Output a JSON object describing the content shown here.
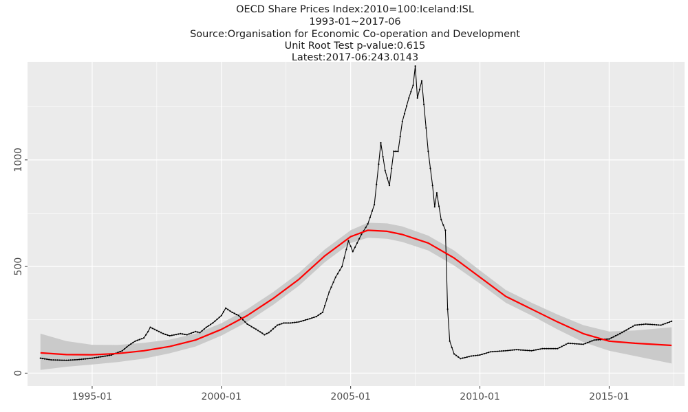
{
  "chart_data": {
    "type": "line",
    "title_lines": [
      "OECD Share Prices Index:2010=100:Iceland:ISL",
      "1993-01~2017-06",
      "Source:Organisation for Economic Co-operation and Development",
      "Unit Root Test p-value:0.615",
      "Latest:2017-06:243.0143"
    ],
    "xlabel": "",
    "ylabel": "",
    "x_range": [
      "1992-07",
      "2017-12"
    ],
    "ylim": [
      -60,
      1460
    ],
    "x_ticks": [
      {
        "date": "1995-01",
        "label": "1995-01"
      },
      {
        "date": "2000-01",
        "label": "2000-01"
      },
      {
        "date": "2005-01",
        "label": "2005-01"
      },
      {
        "date": "2010-01",
        "label": "2010-01"
      },
      {
        "date": "2015-01",
        "label": "2015-01"
      }
    ],
    "y_ticks": [
      {
        "value": 0,
        "label": "0"
      },
      {
        "value": 500,
        "label": "500"
      },
      {
        "value": 1000,
        "label": "1000"
      }
    ],
    "grid": true,
    "background": "#ebebeb",
    "colors": {
      "series": "#000000",
      "trend": "#ff0000",
      "band": "#c8c8c8",
      "grid": "#ffffff"
    },
    "series_anchors": [
      [
        "1993-01",
        70
      ],
      [
        "1993-06",
        62
      ],
      [
        "1994-01",
        60
      ],
      [
        "1994-06",
        63
      ],
      [
        "1995-01",
        70
      ],
      [
        "1995-06",
        78
      ],
      [
        "1995-10",
        85
      ],
      [
        "1996-03",
        105
      ],
      [
        "1996-06",
        130
      ],
      [
        "1996-09",
        150
      ],
      [
        "1997-01",
        165
      ],
      [
        "1997-03",
        195
      ],
      [
        "1997-04",
        215
      ],
      [
        "1997-07",
        200
      ],
      [
        "1997-10",
        185
      ],
      [
        "1998-01",
        175
      ],
      [
        "1998-06",
        185
      ],
      [
        "1998-09",
        180
      ],
      [
        "1999-01",
        195
      ],
      [
        "1999-03",
        190
      ],
      [
        "1999-06",
        215
      ],
      [
        "1999-09",
        235
      ],
      [
        "2000-01",
        270
      ],
      [
        "2000-03",
        305
      ],
      [
        "2000-06",
        285
      ],
      [
        "2000-09",
        270
      ],
      [
        "2001-01",
        230
      ],
      [
        "2001-06",
        200
      ],
      [
        "2001-09",
        180
      ],
      [
        "2001-11",
        190
      ],
      [
        "2002-03",
        225
      ],
      [
        "2002-06",
        235
      ],
      [
        "2002-09",
        235
      ],
      [
        "2003-01",
        240
      ],
      [
        "2003-06",
        255
      ],
      [
        "2003-09",
        265
      ],
      [
        "2003-12",
        285
      ],
      [
        "2004-03",
        380
      ],
      [
        "2004-06",
        450
      ],
      [
        "2004-09",
        500
      ],
      [
        "2004-12",
        620
      ],
      [
        "2005-02",
        570
      ],
      [
        "2005-06",
        650
      ],
      [
        "2005-09",
        700
      ],
      [
        "2005-12",
        790
      ],
      [
        "2006-02",
        980
      ],
      [
        "2006-03",
        1080
      ],
      [
        "2006-05",
        950
      ],
      [
        "2006-07",
        880
      ],
      [
        "2006-09",
        1040
      ],
      [
        "2006-11",
        1040
      ],
      [
        "2007-01",
        1180
      ],
      [
        "2007-04",
        1290
      ],
      [
        "2007-06",
        1350
      ],
      [
        "2007-07",
        1440
      ],
      [
        "2007-08",
        1290
      ],
      [
        "2007-10",
        1370
      ],
      [
        "2008-01",
        1040
      ],
      [
        "2008-03",
        880
      ],
      [
        "2008-04",
        780
      ],
      [
        "2008-05",
        845
      ],
      [
        "2008-07",
        720
      ],
      [
        "2008-09",
        670
      ],
      [
        "2008-10",
        300
      ],
      [
        "2008-11",
        150
      ],
      [
        "2009-01",
        90
      ],
      [
        "2009-04",
        68
      ],
      [
        "2009-09",
        80
      ],
      [
        "2010-01",
        85
      ],
      [
        "2010-06",
        100
      ],
      [
        "2011-01",
        105
      ],
      [
        "2011-06",
        110
      ],
      [
        "2012-01",
        105
      ],
      [
        "2012-06",
        115
      ],
      [
        "2013-01",
        115
      ],
      [
        "2013-06",
        140
      ],
      [
        "2014-01",
        135
      ],
      [
        "2014-06",
        155
      ],
      [
        "2015-01",
        160
      ],
      [
        "2015-06",
        185
      ],
      [
        "2016-01",
        225
      ],
      [
        "2016-06",
        230
      ],
      [
        "2017-01",
        225
      ],
      [
        "2017-06",
        243
      ]
    ],
    "trend_line": [
      [
        "1993-01",
        95
      ],
      [
        "1994-01",
        87
      ],
      [
        "1995-01",
        86
      ],
      [
        "1996-01",
        92
      ],
      [
        "1997-01",
        105
      ],
      [
        "1998-01",
        125
      ],
      [
        "1999-01",
        155
      ],
      [
        "2000-01",
        205
      ],
      [
        "2001-01",
        270
      ],
      [
        "2002-01",
        350
      ],
      [
        "2003-01",
        440
      ],
      [
        "2004-01",
        550
      ],
      [
        "2005-01",
        640
      ],
      [
        "2005-09",
        670
      ],
      [
        "2006-06",
        665
      ],
      [
        "2007-01",
        650
      ],
      [
        "2008-01",
        610
      ],
      [
        "2009-01",
        540
      ],
      [
        "2010-01",
        450
      ],
      [
        "2011-01",
        360
      ],
      [
        "2012-01",
        300
      ],
      [
        "2013-01",
        240
      ],
      [
        "2014-01",
        185
      ],
      [
        "2015-01",
        150
      ],
      [
        "2016-01",
        140
      ],
      [
        "2017-06",
        130
      ]
    ],
    "confidence_band": [
      [
        "1993-01",
        15,
        185
      ],
      [
        "1994-01",
        30,
        150
      ],
      [
        "1995-01",
        40,
        133
      ],
      [
        "1996-01",
        52,
        132
      ],
      [
        "1997-01",
        68,
        142
      ],
      [
        "1998-01",
        93,
        157
      ],
      [
        "1999-01",
        125,
        185
      ],
      [
        "2000-01",
        176,
        234
      ],
      [
        "2001-01",
        240,
        300
      ],
      [
        "2002-01",
        320,
        380
      ],
      [
        "2003-01",
        410,
        470
      ],
      [
        "2004-01",
        520,
        580
      ],
      [
        "2005-01",
        610,
        670
      ],
      [
        "2005-09",
        635,
        705
      ],
      [
        "2006-06",
        630,
        702
      ],
      [
        "2007-01",
        615,
        688
      ],
      [
        "2008-01",
        575,
        645
      ],
      [
        "2009-01",
        505,
        575
      ],
      [
        "2010-01",
        420,
        482
      ],
      [
        "2011-01",
        330,
        390
      ],
      [
        "2012-01",
        270,
        330
      ],
      [
        "2013-01",
        205,
        275
      ],
      [
        "2014-01",
        145,
        225
      ],
      [
        "2015-01",
        105,
        195
      ],
      [
        "2016-01",
        80,
        200
      ],
      [
        "2017-06",
        45,
        215
      ]
    ]
  }
}
